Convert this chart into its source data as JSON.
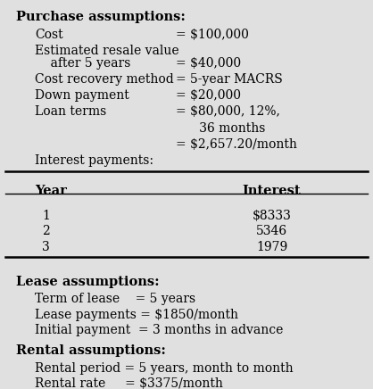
{
  "bg_color": "#e0e0e0",
  "title_purchase": "Purchase assumptions:",
  "purchase_lines": [
    [
      "Cost",
      "= $100,000"
    ],
    [
      "Estimated resale value",
      ""
    ],
    [
      "    after 5 years",
      "= $40,000"
    ],
    [
      "Cost recovery method",
      "= 5-year MACRS"
    ],
    [
      "Down payment",
      "= $20,000"
    ],
    [
      "Loan terms",
      "= $80,000, 12%,"
    ],
    [
      "",
      "      36 months"
    ],
    [
      "",
      "= $2,657.20/month"
    ],
    [
      "Interest payments:",
      ""
    ]
  ],
  "table_headers": [
    "Year",
    "Interest"
  ],
  "table_rows": [
    [
      "1",
      "$8333"
    ],
    [
      "2",
      "5346"
    ],
    [
      "3",
      "1979"
    ]
  ],
  "title_lease": "Lease assumptions:",
  "lease_lines": [
    "Term of lease    = 5 years",
    "Lease payments = $1850/month",
    "Initial payment  = 3 months in advance"
  ],
  "title_rental": "Rental assumptions:",
  "rental_lines": [
    "Rental period = 5 years, month to month",
    "Rental rate     = $3375/month"
  ]
}
